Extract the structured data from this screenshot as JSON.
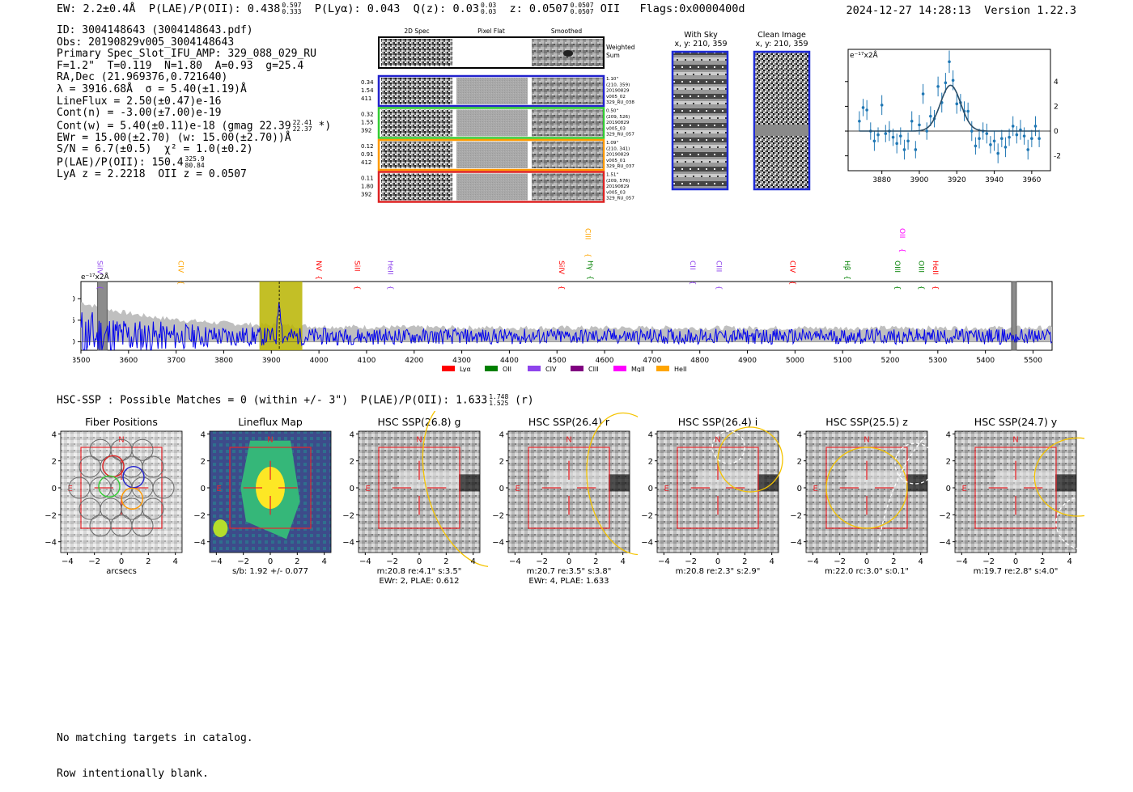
{
  "header": {
    "ew_label": "EW: 2.2±0.4Å",
    "plae_label": "P(LAE)/P(OII): 0.438",
    "plae_hi": "0.597",
    "plae_lo": "0.333",
    "plya_label": "P(Lyα): 0.043",
    "qz_label": "Q(z): 0.03",
    "qz_hi": "0.03",
    "qz_lo": "0.03",
    "z_label": "z: 0.0507",
    "z_hi": "0.0507",
    "z_lo": "0.0507",
    "z_line": "OII",
    "flags": "Flags:0x0000400d",
    "datetime": "2024-12-27 14:28:13",
    "version": "Version 1.22.3"
  },
  "info": {
    "id": "ID: 3004148643 (3004148643.pdf)",
    "obs": "Obs: 20190829v005_3004148643",
    "slot": "Primary Spec_Slot_IFU_AMP: 329_088_029_RU",
    "params": "F=1.2\"  T=0.119  N=1.80  A=0.93  g=25.4",
    "radec": "RA,Dec (21.969376,0.721640)",
    "lambda": "λ = 3916.68Å  σ = 5.40(±1.19)Å",
    "lineflux": "LineFlux = 2.50(±0.47)e-16",
    "contn": "Cont(n) = -3.00(±7.00)e-19",
    "contw": "Cont(w) = 5.40(±0.11)e-18 (gmag 22.39",
    "contw_hi": "22.41",
    "contw_lo": "22.37",
    "contw_end": "*)",
    "ewr": "EWr = 15.00(±2.70) (w: 15.00(±2.70))Å",
    "sn": "S/N = 6.7(±0.5)  χ² = 1.0(±0.2)",
    "plae": "P(LAE)/P(OII): 150.4",
    "plae_hi": "325.9",
    "plae_lo": "80.84",
    "lya": "LyA z = 2.2218  OII z = 0.0507"
  },
  "cutouts": {
    "col_2d": "2D Spec",
    "col_flat": "Pixel Flat",
    "col_smooth": "Smoothed",
    "weighted": [
      "Weighted",
      "Sum"
    ],
    "rows": [
      {
        "nums": [
          "0.34",
          "1.54",
          "411"
        ],
        "notes": [
          "1.10\"",
          "(210, 359)",
          "20190829",
          "v005_02",
          "329_RU_038"
        ],
        "color": "#2222cc"
      },
      {
        "nums": [
          "0.32",
          "1.55",
          "392"
        ],
        "notes": [
          "0.50\"",
          "(209, 526)",
          "20190829",
          "v005_03",
          "329_RU_057"
        ],
        "color": "#33cc33"
      },
      {
        "nums": [
          "0.12",
          "0.91",
          "412"
        ],
        "notes": [
          "1.09\"",
          "(210, 341)",
          "20190829",
          "v005_01",
          "329_RU_037"
        ],
        "color": "#ff9900"
      },
      {
        "nums": [
          "0.11",
          "1.80",
          "392"
        ],
        "notes": [
          "1.51\"",
          "(209, 576)",
          "20190829",
          "v005_03",
          "329_RU_057"
        ],
        "color": "#dd2222"
      }
    ],
    "with_sky": [
      "With Sky",
      "x, y: 210, 359"
    ],
    "clean": [
      "Clean Image",
      "x, y: 210, 359"
    ]
  },
  "chart_data": [
    {
      "type": "scatter",
      "name": "line-fit",
      "unit_label": "e⁻¹⁷x2Å",
      "xlim": [
        3862,
        3970
      ],
      "ylim": [
        -3.2,
        6.6
      ],
      "xticks": [
        3880,
        3900,
        3920,
        3940,
        3960
      ],
      "yticks": [
        -2,
        0,
        2,
        4
      ],
      "fit": {
        "center": 3916.68,
        "sigma": 5.4,
        "amp": 3.7
      },
      "points": [
        {
          "x": 3868,
          "y": 0.8,
          "e": 0.8
        },
        {
          "x": 3870,
          "y": 1.9,
          "e": 0.7
        },
        {
          "x": 3872,
          "y": 1.7,
          "e": 0.8
        },
        {
          "x": 3874,
          "y": 0.0,
          "e": 0.7
        },
        {
          "x": 3876,
          "y": -0.8,
          "e": 0.8
        },
        {
          "x": 3878,
          "y": -0.3,
          "e": 0.6
        },
        {
          "x": 3880,
          "y": 2.1,
          "e": 0.8
        },
        {
          "x": 3882,
          "y": -0.2,
          "e": 0.7
        },
        {
          "x": 3884,
          "y": 0.0,
          "e": 0.8
        },
        {
          "x": 3886,
          "y": -0.5,
          "e": 0.7
        },
        {
          "x": 3888,
          "y": -1.0,
          "e": 0.8
        },
        {
          "x": 3890,
          "y": -0.4,
          "e": 0.7
        },
        {
          "x": 3892,
          "y": -1.5,
          "e": 0.8
        },
        {
          "x": 3894,
          "y": -0.8,
          "e": 0.7
        },
        {
          "x": 3896,
          "y": 0.8,
          "e": 0.8
        },
        {
          "x": 3898,
          "y": -1.5,
          "e": 0.7
        },
        {
          "x": 3900,
          "y": 0.5,
          "e": 0.8
        },
        {
          "x": 3902,
          "y": 3.0,
          "e": 0.8
        },
        {
          "x": 3904,
          "y": 0.0,
          "e": 0.7
        },
        {
          "x": 3906,
          "y": 1.2,
          "e": 0.8
        },
        {
          "x": 3908,
          "y": 1.0,
          "e": 0.7
        },
        {
          "x": 3910,
          "y": 3.6,
          "e": 0.8
        },
        {
          "x": 3912,
          "y": 2.3,
          "e": 0.8
        },
        {
          "x": 3914,
          "y": 3.9,
          "e": 0.8
        },
        {
          "x": 3916,
          "y": 5.6,
          "e": 0.9
        },
        {
          "x": 3918,
          "y": 4.1,
          "e": 0.8
        },
        {
          "x": 3920,
          "y": 2.2,
          "e": 0.8
        },
        {
          "x": 3922,
          "y": 2.3,
          "e": 0.7
        },
        {
          "x": 3924,
          "y": 1.6,
          "e": 0.8
        },
        {
          "x": 3926,
          "y": 1.6,
          "e": 0.7
        },
        {
          "x": 3928,
          "y": 0.0,
          "e": 0.8
        },
        {
          "x": 3930,
          "y": -1.2,
          "e": 0.7
        },
        {
          "x": 3932,
          "y": -0.6,
          "e": 0.8
        },
        {
          "x": 3934,
          "y": 0.0,
          "e": 0.7
        },
        {
          "x": 3936,
          "y": -0.2,
          "e": 0.8
        },
        {
          "x": 3938,
          "y": -1.1,
          "e": 0.7
        },
        {
          "x": 3940,
          "y": -0.8,
          "e": 0.8
        },
        {
          "x": 3942,
          "y": -1.8,
          "e": 0.8
        },
        {
          "x": 3944,
          "y": -0.6,
          "e": 0.7
        },
        {
          "x": 3946,
          "y": -1.3,
          "e": 0.8
        },
        {
          "x": 3948,
          "y": -0.5,
          "e": 0.7
        },
        {
          "x": 3950,
          "y": 0.4,
          "e": 0.8
        },
        {
          "x": 3952,
          "y": -0.3,
          "e": 0.7
        },
        {
          "x": 3954,
          "y": 0.1,
          "e": 0.8
        },
        {
          "x": 3956,
          "y": -0.4,
          "e": 0.7
        },
        {
          "x": 3958,
          "y": -1.5,
          "e": 0.8
        },
        {
          "x": 3960,
          "y": -0.6,
          "e": 0.7
        },
        {
          "x": 3962,
          "y": 0.4,
          "e": 0.8
        },
        {
          "x": 3964,
          "y": -0.6,
          "e": 0.7
        }
      ]
    },
    {
      "type": "line",
      "name": "full-spectrum",
      "unit_label": "e⁻¹⁷x2Å",
      "xlim": [
        3500,
        5540
      ],
      "ylim": [
        -1.0,
        7.0
      ],
      "xticks": [
        3500,
        3600,
        3700,
        3800,
        3900,
        4000,
        4100,
        4200,
        4300,
        4400,
        4500,
        4600,
        4700,
        4800,
        4900,
        5000,
        5100,
        5200,
        5300,
        5400,
        5500
      ],
      "yticks": [
        0.0,
        2.5,
        5.0
      ],
      "highlight": [
        3875,
        3965
      ],
      "marker": 3916.68,
      "grey_bands": [
        [
          3535,
          3555
        ],
        [
          5455,
          5465
        ]
      ],
      "lines": [
        {
          "label": "SiIV",
          "x": 3530,
          "color": "#8e44ec",
          "row": 0
        },
        {
          "label": "CIV",
          "x": 3700,
          "color": "#ffa500",
          "row": 0
        },
        {
          "label": "NV",
          "x": 3990,
          "color": "#ff0000",
          "row": 0
        },
        {
          "label": "SiII",
          "x": 4070,
          "color": "#ff0000",
          "row": 0
        },
        {
          "label": "HeII",
          "x": 4140,
          "color": "#8e44ec",
          "row": 0
        },
        {
          "label": "SiIV",
          "x": 4500,
          "color": "#ff0000",
          "row": 0
        },
        {
          "label": "CIII",
          "x": 4555,
          "color": "#ffa500",
          "row": 1
        },
        {
          "label": "Hγ",
          "x": 4560,
          "color": "#008000",
          "row": 0
        },
        {
          "label": "CII",
          "x": 4775,
          "color": "#8e44ec",
          "row": 0
        },
        {
          "label": "CIII",
          "x": 4830,
          "color": "#8e44ec",
          "row": 0
        },
        {
          "label": "CIV",
          "x": 4985,
          "color": "#ff0000",
          "row": 0
        },
        {
          "label": "Hβ",
          "x": 5100,
          "color": "#008000",
          "row": 0
        },
        {
          "label": "OII",
          "x": 5215,
          "color": "#ff00ff",
          "row": 1
        },
        {
          "label": "OIII",
          "x": 5205,
          "color": "#008000",
          "row": 0
        },
        {
          "label": "OIII",
          "x": 5255,
          "color": "#008000",
          "row": 0
        },
        {
          "label": "HeII",
          "x": 5285,
          "color": "#ff0000",
          "row": 0
        }
      ],
      "legend": [
        {
          "label": "Lyα",
          "color": "#ff0000"
        },
        {
          "label": "OII",
          "color": "#008000"
        },
        {
          "label": "CIV",
          "color": "#8e44ec"
        },
        {
          "label": "CIII",
          "color": "#800080"
        },
        {
          "label": "MgII",
          "color": "#ff00ff"
        },
        {
          "label": "HeII",
          "color": "#ffa500"
        }
      ]
    }
  ],
  "hsc": {
    "title": "HSC-SSP : Possible Matches = 0 (within +/- 3\")  P(LAE)/P(OII): 1.633",
    "hi": "1.748",
    "lo": "1.525",
    "band": "(r)"
  },
  "panels": [
    {
      "title": "Fiber Positions",
      "cap1": "arcsecs",
      "cap2": ""
    },
    {
      "title": "Lineflux Map",
      "cap1": "s/b: 1.92 +/- 0.077",
      "cap2": ""
    },
    {
      "title": "HSC SSP(26.8) g",
      "cap1": "m:20.8  re:4.1\"  s:3.5\"",
      "cap2": "EWr: 2, PLAE: 0.612"
    },
    {
      "title": "HSC SSP(26.4) r",
      "cap1": "m:20.7  re:3.5\"  s:3.8\"",
      "cap2": "EWr: 4, PLAE: 1.633"
    },
    {
      "title": "HSC SSP(26.4) i",
      "cap1": "m:20.8  re:2.3\"  s:2.9\"",
      "cap2": ""
    },
    {
      "title": "HSC SSP(25.5) z",
      "cap1": "m:22.0  rc:3.0\"  s:0.1\"",
      "cap2": ""
    },
    {
      "title": "HSC SSP(24.7) y",
      "cap1": "m:19.7  re:2.8\"  s:4.0\"",
      "cap2": ""
    }
  ],
  "panel_axis": {
    "ticks": [
      "−4",
      "−2",
      "0",
      "2",
      "4"
    ],
    "n": "N",
    "e": "E"
  },
  "footer": [
    "No matching targets in catalog.",
    "Row intentionally blank."
  ]
}
